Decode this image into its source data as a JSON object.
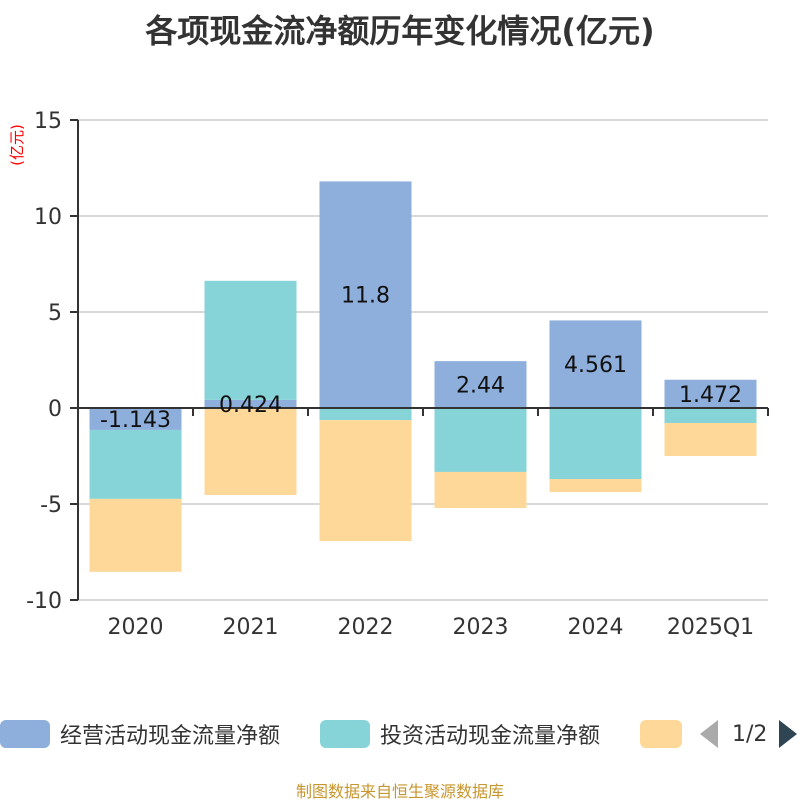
{
  "title": "各项现金流净额历年变化情况(亿元)",
  "source": "制图数据来自恒生聚源数据库",
  "legend": {
    "items": [
      {
        "label": "经营活动现金流量净额",
        "color": "#8eaedb"
      },
      {
        "label": "投资活动现金流量净额",
        "color": "#86d4d8"
      },
      {
        "label": "",
        "color": "#fed899"
      }
    ],
    "page": "1/2"
  },
  "chart_data": {
    "type": "bar",
    "stacked": true,
    "title": "各项现金流净额历年变化情况(亿元)",
    "ylabel": "(亿元)",
    "xlabel": "",
    "ylim": [
      -10,
      15
    ],
    "yticks": [
      15,
      10,
      5,
      0,
      -5,
      -10
    ],
    "grid": true,
    "legend_position": "bottom",
    "categories": [
      "2020",
      "2021",
      "2022",
      "2023",
      "2024",
      "2025Q1"
    ],
    "series": [
      {
        "name": "经营活动现金流量净额",
        "color": "#8eaedb",
        "values": [
          -1.143,
          0.424,
          11.8,
          2.44,
          4.561,
          1.472
        ],
        "labels": [
          "-1.143",
          "0.424",
          "11.8",
          "2.44",
          "4.561",
          "1.472"
        ]
      },
      {
        "name": "投资活动现金流量净额",
        "color": "#86d4d8",
        "values": [
          -3.59,
          6.2,
          -0.63,
          -3.33,
          -3.7,
          -0.78
        ]
      },
      {
        "name": "",
        "color": "#fed899",
        "values": [
          -3.8,
          -4.53,
          -6.3,
          -1.88,
          -0.68,
          -1.72
        ]
      }
    ]
  }
}
